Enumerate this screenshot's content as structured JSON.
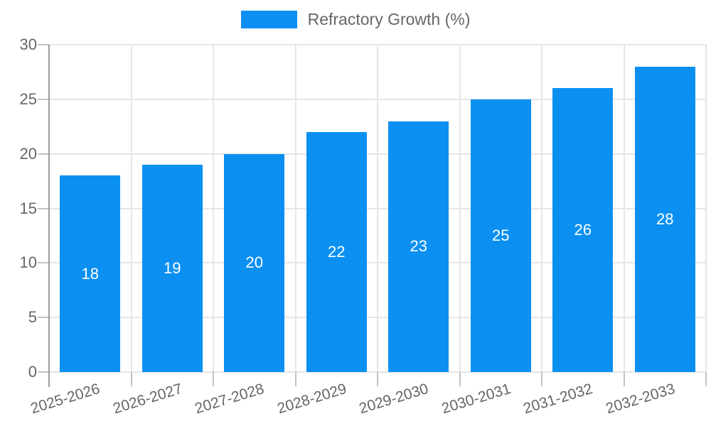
{
  "legend": {
    "label": "Refractory Growth (%)"
  },
  "colors": {
    "bar": "#0b90f2",
    "grid": "#e6e6e6",
    "tick": "#c2c2c2",
    "axis_line": "#9b9b9b",
    "axis_text": "#666666",
    "value_text": "#ffffff",
    "background": "#ffffff"
  },
  "chart_data": {
    "type": "bar",
    "title": "",
    "xlabel": "",
    "ylabel": "",
    "categories": [
      "2025-2026",
      "2026-2027",
      "2027-2028",
      "2028-2029",
      "2029-2030",
      "2030-2031",
      "2031-2032",
      "2032-2033"
    ],
    "series": [
      {
        "name": "Refractory Growth (%)",
        "values": [
          18,
          19,
          20,
          22,
          23,
          25,
          26,
          28
        ]
      }
    ],
    "value_labels": [
      18,
      19,
      20,
      22,
      23,
      25,
      26,
      28
    ],
    "value_label_position": "inside-center",
    "ylim": [
      0,
      30
    ],
    "y_ticks": [
      0,
      5,
      10,
      15,
      20,
      25,
      30
    ],
    "grid": true,
    "legend_position": "top-center",
    "x_label_rotation_deg": -17
  }
}
